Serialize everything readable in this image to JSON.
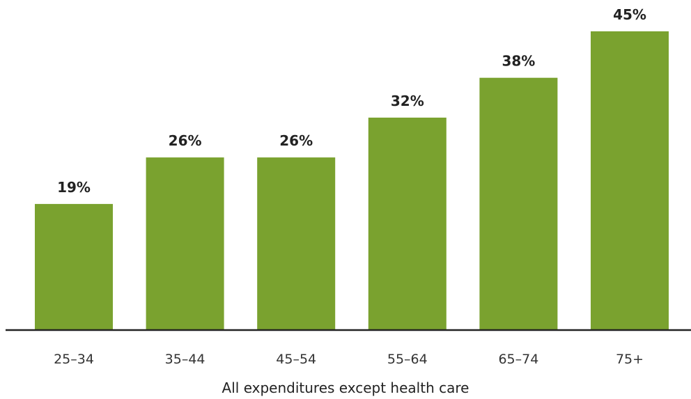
{
  "chart_data": {
    "type": "bar",
    "categories": [
      "25–34",
      "35–44",
      "45–54",
      "55–64",
      "65–74",
      "75+"
    ],
    "values": [
      19,
      26,
      26,
      32,
      38,
      45
    ],
    "value_labels": [
      "19%",
      "26%",
      "26%",
      "32%",
      "38%",
      "45%"
    ],
    "title": "",
    "xlabel": "All expenditures except health care",
    "ylabel": "",
    "ylim": [
      0,
      45
    ],
    "grid": false,
    "legend": "none",
    "colors": {
      "bar": "#7aa22f",
      "axis": "#222222"
    }
  }
}
